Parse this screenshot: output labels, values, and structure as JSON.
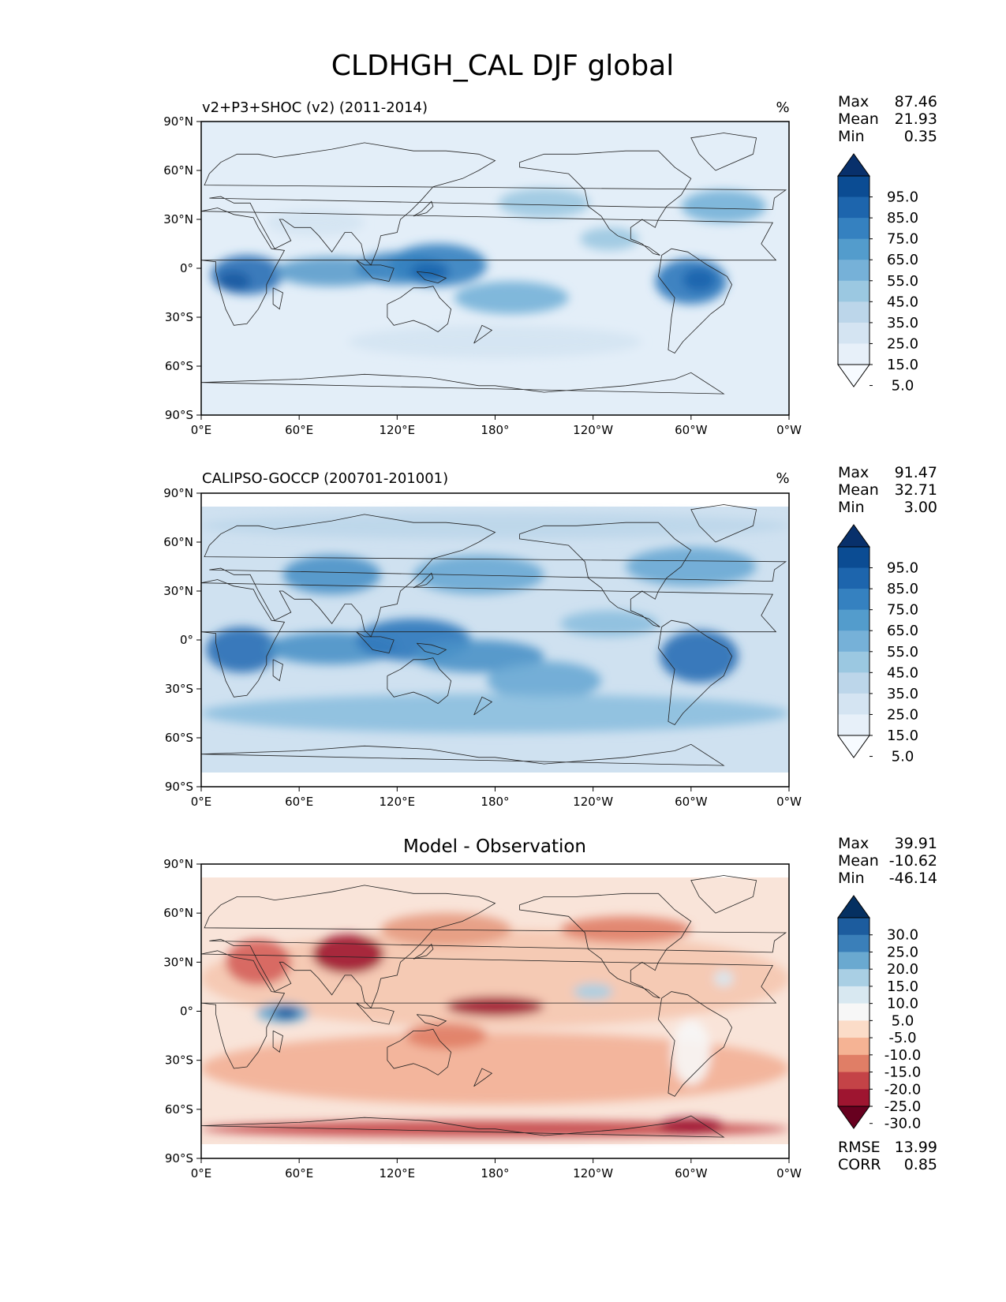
{
  "figure": {
    "title": "CLDHGH_CAL DJF global"
  },
  "map": {
    "lat_ticks": [
      "90°N",
      "60°N",
      "30°N",
      "0°",
      "30°S",
      "60°S",
      "90°S"
    ],
    "lon_ticks": [
      "0°E",
      "60°E",
      "120°E",
      "180°",
      "120°W",
      "60°W",
      "0°W"
    ],
    "xlim": [
      0,
      360
    ],
    "ylim": [
      -90,
      90
    ]
  },
  "panels": [
    {
      "id": "model",
      "title_left": "v2+P3+SHOC (v2) (2011-2014)",
      "title_center": "",
      "units": "%",
      "stats": [
        {
          "label": "Max",
          "value": "87.46"
        },
        {
          "label": "Mean",
          "value": "21.93"
        },
        {
          "label": "Min",
          "value": "0.35"
        }
      ],
      "colorbar": {
        "labels": [
          "95.0",
          "85.0",
          "75.0",
          "65.0",
          "55.0",
          "45.0",
          "35.0",
          "25.0",
          "15.0",
          "5.0"
        ],
        "colors": [
          "#08306b",
          "#0b4c93",
          "#1d65ad",
          "#3581c0",
          "#539ccc",
          "#76b1d8",
          "#9bc8e1",
          "#bcd6ea",
          "#d4e4f2",
          "#e7f0f9",
          "#f7fbff"
        ]
      },
      "blobs": [
        {
          "lon": 28,
          "lat": -4,
          "rx": 22,
          "ry": 12,
          "c": "#2a6fb5"
        },
        {
          "lon": 20,
          "lat": -8,
          "rx": 10,
          "ry": 6,
          "c": "#1b5aa2"
        },
        {
          "lon": 80,
          "lat": -2,
          "rx": 35,
          "ry": 9,
          "c": "#5c9dcc"
        },
        {
          "lon": 120,
          "lat": 0,
          "rx": 25,
          "ry": 10,
          "c": "#3e86c2"
        },
        {
          "lon": 145,
          "lat": 2,
          "rx": 30,
          "ry": 13,
          "c": "#3581c0"
        },
        {
          "lon": 140,
          "lat": -2,
          "rx": 12,
          "ry": 6,
          "c": "#1d65ad"
        },
        {
          "lon": 190,
          "lat": -18,
          "rx": 35,
          "ry": 10,
          "c": "#76b1d8"
        },
        {
          "lon": 300,
          "lat": -8,
          "rx": 22,
          "ry": 14,
          "c": "#2f78bb"
        },
        {
          "lon": 305,
          "lat": -7,
          "rx": 10,
          "ry": 7,
          "c": "#1d65ad"
        },
        {
          "lon": 210,
          "lat": 40,
          "rx": 28,
          "ry": 9,
          "c": "#9bc8e1"
        },
        {
          "lon": 320,
          "lat": 38,
          "rx": 26,
          "ry": 10,
          "c": "#76b1d8"
        },
        {
          "lon": 250,
          "lat": 18,
          "rx": 18,
          "ry": 7,
          "c": "#9bc8e1"
        },
        {
          "lon": 70,
          "lat": 28,
          "rx": 30,
          "ry": 8,
          "c": "#d4e4f2"
        },
        {
          "lon": 180,
          "lat": -45,
          "rx": 90,
          "ry": 10,
          "c": "#d4e4f2"
        }
      ]
    },
    {
      "id": "obs",
      "title_left": "CALIPSO-GOCCP (200701-201001)",
      "title_center": "",
      "units": "%",
      "stats": [
        {
          "label": "Max",
          "value": "91.47"
        },
        {
          "label": "Mean",
          "value": "32.71"
        },
        {
          "label": "Min",
          "value": "3.00"
        }
      ],
      "colorbar": {
        "labels": [
          "95.0",
          "85.0",
          "75.0",
          "65.0",
          "55.0",
          "45.0",
          "35.0",
          "25.0",
          "15.0",
          "5.0"
        ],
        "colors": [
          "#08306b",
          "#0b4c93",
          "#1d65ad",
          "#3581c0",
          "#539ccc",
          "#76b1d8",
          "#9bc8e1",
          "#bcd6ea",
          "#d4e4f2",
          "#e7f0f9",
          "#f7fbff"
        ]
      },
      "blobs": [
        {
          "lon": 25,
          "lat": -6,
          "rx": 22,
          "ry": 14,
          "c": "#2a6fb5"
        },
        {
          "lon": 80,
          "lat": -5,
          "rx": 40,
          "ry": 10,
          "c": "#4a92c8"
        },
        {
          "lon": 130,
          "lat": 0,
          "rx": 35,
          "ry": 13,
          "c": "#2f78bb"
        },
        {
          "lon": 170,
          "lat": -10,
          "rx": 40,
          "ry": 10,
          "c": "#4a92c8"
        },
        {
          "lon": 210,
          "lat": -25,
          "rx": 35,
          "ry": 12,
          "c": "#6aa9d4"
        },
        {
          "lon": 305,
          "lat": -10,
          "rx": 24,
          "ry": 16,
          "c": "#2a6fb5"
        },
        {
          "lon": 80,
          "lat": 40,
          "rx": 30,
          "ry": 12,
          "c": "#4a92c8"
        },
        {
          "lon": 170,
          "lat": 40,
          "rx": 40,
          "ry": 12,
          "c": "#6aa9d4"
        },
        {
          "lon": 300,
          "lat": 45,
          "rx": 40,
          "ry": 12,
          "c": "#6aa9d4"
        },
        {
          "lon": 250,
          "lat": 10,
          "rx": 30,
          "ry": 8,
          "c": "#8cbfdf"
        },
        {
          "lon": 180,
          "lat": -45,
          "rx": 180,
          "ry": 12,
          "c": "#8cbfdf"
        },
        {
          "lon": 180,
          "lat": 70,
          "rx": 180,
          "ry": 8,
          "c": "#bcd6ea"
        }
      ]
    },
    {
      "id": "diff",
      "title_left": "",
      "title_center": "Model - Observation",
      "units": "",
      "stats": [
        {
          "label": "Max",
          "value": "39.91"
        },
        {
          "label": "Mean",
          "value": "-10.62"
        },
        {
          "label": "Min",
          "value": "-46.14"
        }
      ],
      "colorbar": {
        "labels": [
          "30.0",
          "25.0",
          "20.0",
          "15.0",
          "10.0",
          "5.0",
          "-5.0",
          "-10.0",
          "-15.0",
          "-20.0",
          "-25.0",
          "-30.0"
        ],
        "colors": [
          "#053061",
          "#1c5c9e",
          "#3a7fb9",
          "#6aa9d0",
          "#a9cfe4",
          "#d8e8f1",
          "#f7f7f7",
          "#fbdcc8",
          "#f5b394",
          "#e07e66",
          "#c44347",
          "#9e1530",
          "#67001f"
        ]
      },
      "stats_bottom": [
        {
          "label": "RMSE",
          "value": "13.99"
        },
        {
          "label": "CORR",
          "value": "0.85"
        }
      ],
      "blobs": [
        {
          "lon": 180,
          "lat": 20,
          "rx": 180,
          "ry": 30,
          "c": "#f5c7b0"
        },
        {
          "lon": 180,
          "lat": -35,
          "rx": 180,
          "ry": 22,
          "c": "#f2b096"
        },
        {
          "lon": 90,
          "lat": 35,
          "rx": 22,
          "ry": 12,
          "c": "#9e1530"
        },
        {
          "lon": 35,
          "lat": 30,
          "rx": 20,
          "ry": 14,
          "c": "#d5605a"
        },
        {
          "lon": 180,
          "lat": 3,
          "rx": 30,
          "ry": 6,
          "c": "#9e1530"
        },
        {
          "lon": 150,
          "lat": -15,
          "rx": 25,
          "ry": 8,
          "c": "#e07e66"
        },
        {
          "lon": 150,
          "lat": 50,
          "rx": 40,
          "ry": 10,
          "c": "#e59a80"
        },
        {
          "lon": 260,
          "lat": 50,
          "rx": 40,
          "ry": 8,
          "c": "#e07e66"
        },
        {
          "lon": 180,
          "lat": -72,
          "rx": 180,
          "ry": 5,
          "c": "#c44347"
        },
        {
          "lon": 300,
          "lat": -70,
          "rx": 20,
          "ry": 5,
          "c": "#9e1530"
        },
        {
          "lon": 50,
          "lat": -1,
          "rx": 16,
          "ry": 6,
          "c": "#6aa9d0"
        },
        {
          "lon": 52,
          "lat": -1,
          "rx": 8,
          "ry": 4,
          "c": "#1c5c9e"
        },
        {
          "lon": 240,
          "lat": 12,
          "rx": 12,
          "ry": 5,
          "c": "#a9cfe4"
        },
        {
          "lon": 320,
          "lat": 20,
          "rx": 6,
          "ry": 5,
          "c": "#d8e8f1"
        },
        {
          "lon": 300,
          "lat": -25,
          "rx": 12,
          "ry": 20,
          "c": "#f7f7f7"
        }
      ]
    }
  ]
}
